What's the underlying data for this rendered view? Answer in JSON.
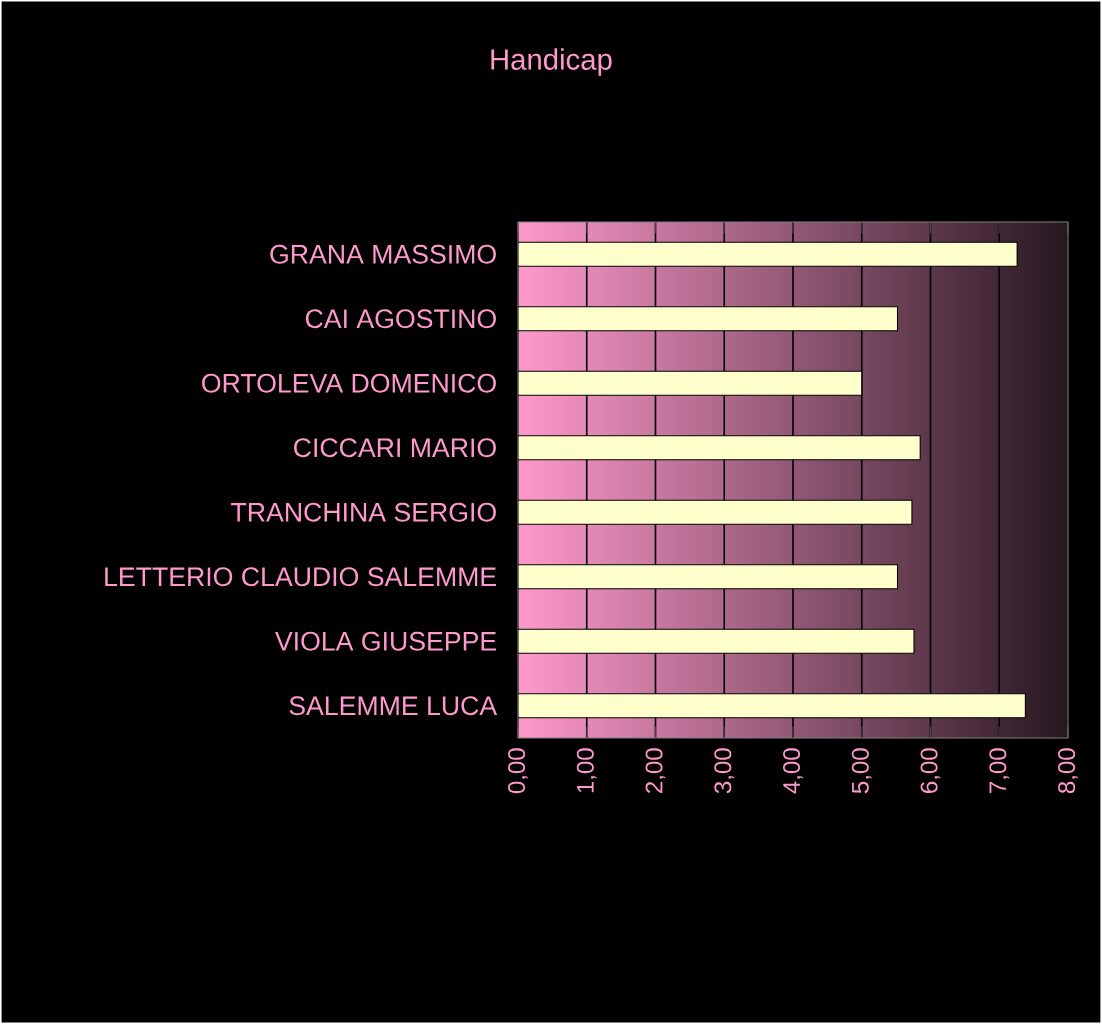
{
  "chart_data": {
    "type": "bar",
    "orientation": "horizontal",
    "title": "Handicap",
    "categories": [
      "GRANA MASSIMO",
      "CAI AGOSTINO",
      "ORTOLEVA DOMENICO",
      "CICCARI MARIO",
      "TRANCHINA SERGIO",
      "LETTERIO CLAUDIO SALEMME",
      "VIOLA GIUSEPPE",
      "SALEMME LUCA"
    ],
    "values": [
      7.26,
      5.52,
      5.0,
      5.85,
      5.73,
      5.52,
      5.76,
      7.38
    ],
    "color": "#ffffcc",
    "xlim": [
      0,
      8
    ],
    "xticks": [
      {
        "value": 0,
        "label": "0,00"
      },
      {
        "value": 1,
        "label": "1,00"
      },
      {
        "value": 2,
        "label": "2,00"
      },
      {
        "value": 3,
        "label": "3,00"
      },
      {
        "value": 4,
        "label": "4,00"
      },
      {
        "value": 5,
        "label": "5,00"
      },
      {
        "value": 6,
        "label": "6,00"
      },
      {
        "value": 7,
        "label": "7,00"
      },
      {
        "value": 8,
        "label": "8,00"
      }
    ],
    "grid": "x"
  }
}
